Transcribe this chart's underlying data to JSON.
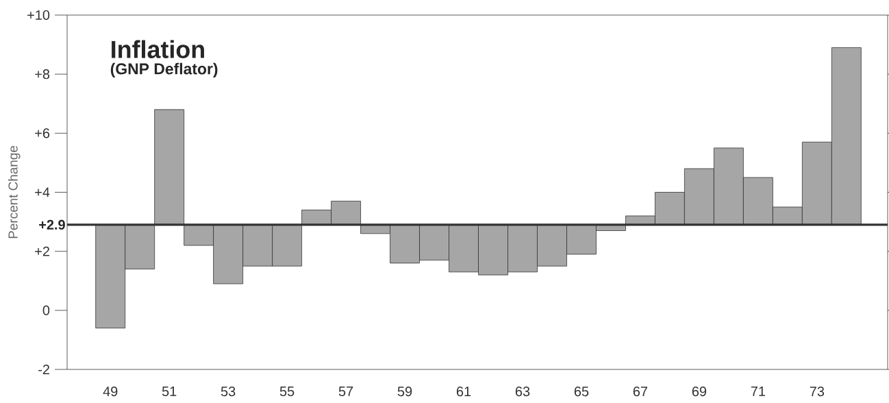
{
  "chart_data": {
    "type": "bar",
    "title": "Inflation",
    "subtitle": "(GNP Deflator)",
    "ylabel": "Percent Change",
    "categories": [
      "49",
      null,
      "51",
      null,
      "53",
      null,
      "55",
      null,
      "57",
      null,
      "59",
      null,
      "61",
      null,
      "63",
      null,
      "65",
      null,
      "67",
      null,
      "69",
      null,
      "71",
      null,
      "73",
      null
    ],
    "base": [
      2.9,
      2.9,
      2.9,
      2.9,
      2.9,
      2.9,
      2.9,
      2.9,
      2.9,
      2.9,
      2.9,
      2.9,
      2.9,
      2.9,
      2.9,
      2.9,
      2.9,
      2.9,
      2.9,
      2.9,
      2.9,
      2.9,
      2.9,
      2.9,
      2.9,
      2.9
    ],
    "values": [
      -3.5,
      -1.5,
      3.9,
      -0.7,
      -2.0,
      -1.4,
      -1.4,
      0.5,
      0.8,
      -0.3,
      -1.3,
      -1.2,
      -1.6,
      -1.7,
      -1.6,
      -1.4,
      -1.0,
      -0.2,
      0.3,
      1.1,
      1.9,
      2.6,
      1.6,
      0.6,
      2.8,
      6.0
    ],
    "color": "#a6a6a6",
    "ylim": [
      -2,
      10
    ],
    "yticks": [
      {
        "value": -2,
        "label": "-2"
      },
      0,
      {
        "value": 2,
        "label": "+2"
      },
      {
        "value": 4,
        "label": "+4"
      },
      {
        "value": 6,
        "label": "+6"
      },
      {
        "value": 8,
        "label": "+8"
      },
      {
        "value": 10,
        "label": "+10"
      }
    ],
    "ref_lines": [
      {
        "axis": "y",
        "value": 2.9,
        "label": "+2.9",
        "color": "#333333"
      }
    ]
  }
}
